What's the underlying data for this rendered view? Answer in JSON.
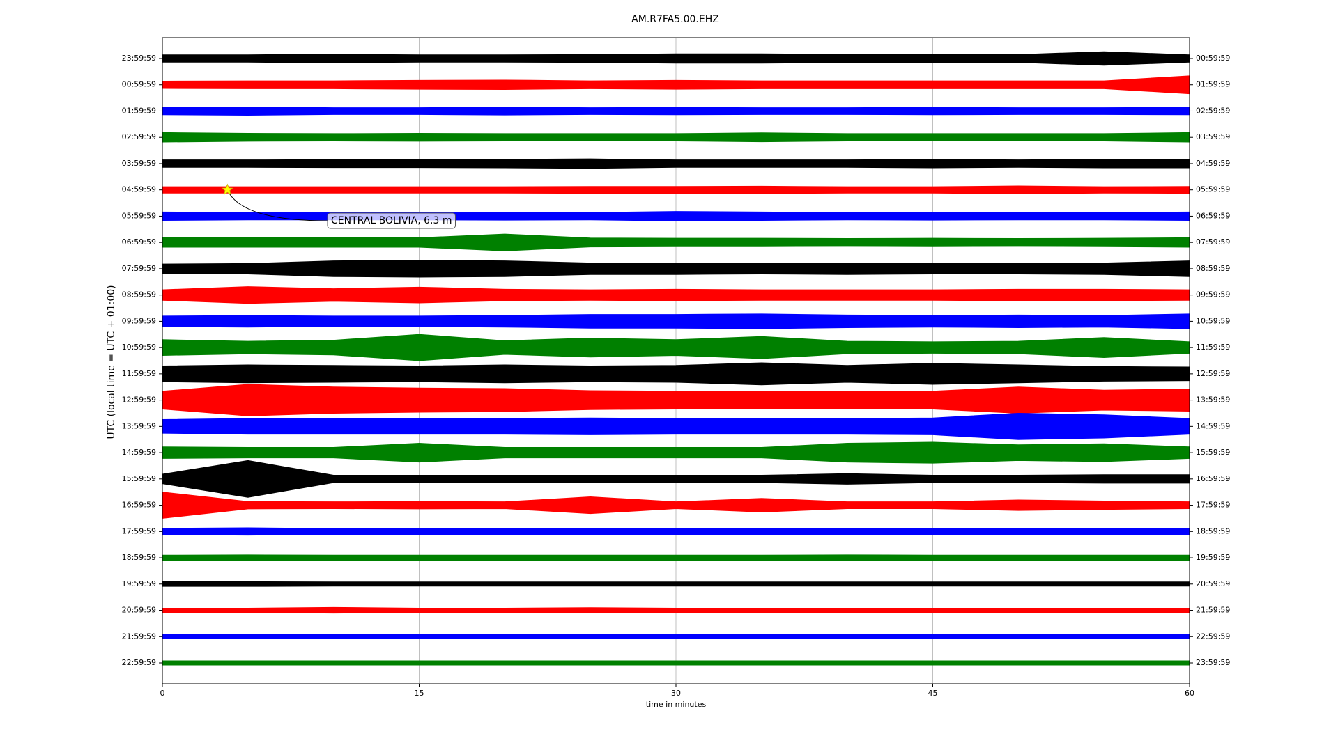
{
  "chart_data": {
    "type": "helicorder",
    "title": "AM.R7FA5.00.EHZ",
    "xlabel": "time in minutes",
    "ylabel": "UTC (local time = UTC + 01:00)",
    "xlim": [
      0,
      60
    ],
    "xticks": [
      0,
      15,
      30,
      45,
      60
    ],
    "grid": true,
    "x": [
      0,
      5,
      10,
      15,
      20,
      25,
      30,
      35,
      40,
      45,
      50,
      55,
      60
    ],
    "series": [
      {
        "name": "23:59:59",
        "right_label": "00:59:59",
        "color": "#000000",
        "values": [
          0.14,
          0.14,
          0.16,
          0.14,
          0.14,
          0.15,
          0.18,
          0.18,
          0.15,
          0.17,
          0.15,
          0.26,
          0.14
        ]
      },
      {
        "name": "00:59:59",
        "right_label": "01:59:59",
        "color": "#ff0000",
        "values": [
          0.14,
          0.15,
          0.15,
          0.17,
          0.18,
          0.15,
          0.17,
          0.15,
          0.15,
          0.15,
          0.15,
          0.15,
          0.34
        ]
      },
      {
        "name": "01:59:59",
        "right_label": "02:59:59",
        "color": "#0000ff",
        "values": [
          0.14,
          0.16,
          0.13,
          0.13,
          0.15,
          0.13,
          0.14,
          0.13,
          0.13,
          0.14,
          0.13,
          0.13,
          0.14
        ]
      },
      {
        "name": "02:59:59",
        "right_label": "03:59:59",
        "color": "#008000",
        "values": [
          0.18,
          0.15,
          0.14,
          0.15,
          0.14,
          0.14,
          0.14,
          0.17,
          0.14,
          0.14,
          0.14,
          0.14,
          0.18
        ]
      },
      {
        "name": "03:59:59",
        "right_label": "04:59:59",
        "color": "#000000",
        "values": [
          0.14,
          0.14,
          0.15,
          0.15,
          0.16,
          0.18,
          0.14,
          0.14,
          0.14,
          0.16,
          0.14,
          0.16,
          0.16
        ]
      },
      {
        "name": "04:59:59",
        "right_label": "05:59:59",
        "color": "#ff0000",
        "values": [
          0.12,
          0.12,
          0.12,
          0.12,
          0.12,
          0.13,
          0.13,
          0.14,
          0.12,
          0.12,
          0.15,
          0.12,
          0.13
        ]
      },
      {
        "name": "05:59:59",
        "right_label": "06:59:59",
        "color": "#0000ff",
        "values": [
          0.16,
          0.14,
          0.14,
          0.14,
          0.15,
          0.14,
          0.18,
          0.16,
          0.14,
          0.15,
          0.14,
          0.14,
          0.16
        ]
      },
      {
        "name": "06:59:59",
        "right_label": "07:59:59",
        "color": "#008000",
        "values": [
          0.18,
          0.18,
          0.18,
          0.18,
          0.32,
          0.17,
          0.16,
          0.16,
          0.15,
          0.16,
          0.15,
          0.16,
          0.18
        ]
      },
      {
        "name": "07:59:59",
        "right_label": "08:59:59",
        "color": "#000000",
        "values": [
          0.18,
          0.2,
          0.3,
          0.32,
          0.3,
          0.22,
          0.22,
          0.2,
          0.22,
          0.2,
          0.2,
          0.22,
          0.3
        ]
      },
      {
        "name": "08:59:59",
        "right_label": "09:59:59",
        "color": "#ff0000",
        "values": [
          0.2,
          0.32,
          0.24,
          0.3,
          0.22,
          0.2,
          0.22,
          0.2,
          0.2,
          0.2,
          0.22,
          0.22,
          0.2
        ]
      },
      {
        "name": "09:59:59",
        "right_label": "10:59:59",
        "color": "#0000ff",
        "values": [
          0.2,
          0.22,
          0.2,
          0.2,
          0.22,
          0.26,
          0.26,
          0.28,
          0.24,
          0.22,
          0.24,
          0.22,
          0.28
        ]
      },
      {
        "name": "10:59:59",
        "right_label": "11:59:59",
        "color": "#008000",
        "values": [
          0.3,
          0.24,
          0.28,
          0.5,
          0.26,
          0.36,
          0.3,
          0.42,
          0.24,
          0.22,
          0.24,
          0.38,
          0.22
        ]
      },
      {
        "name": "11:59:59",
        "right_label": "12:59:59",
        "color": "#000000",
        "values": [
          0.3,
          0.34,
          0.32,
          0.3,
          0.34,
          0.3,
          0.32,
          0.42,
          0.32,
          0.4,
          0.34,
          0.28,
          0.26
        ]
      },
      {
        "name": "12:59:59",
        "right_label": "13:59:59",
        "color": "#ff0000",
        "values": [
          0.34,
          0.6,
          0.5,
          0.46,
          0.44,
          0.36,
          0.34,
          0.34,
          0.34,
          0.34,
          0.5,
          0.38,
          0.42
        ]
      },
      {
        "name": "13:59:59",
        "right_label": "14:59:59",
        "color": "#0000ff",
        "values": [
          0.26,
          0.3,
          0.3,
          0.3,
          0.3,
          0.32,
          0.3,
          0.3,
          0.3,
          0.32,
          0.5,
          0.44,
          0.3
        ]
      },
      {
        "name": "14:59:59",
        "right_label": "15:59:59",
        "color": "#008000",
        "values": [
          0.22,
          0.2,
          0.2,
          0.36,
          0.2,
          0.2,
          0.2,
          0.2,
          0.36,
          0.4,
          0.3,
          0.34,
          0.22
        ]
      },
      {
        "name": "15:59:59",
        "right_label": "16:59:59",
        "color": "#000000",
        "values": [
          0.18,
          0.7,
          0.14,
          0.14,
          0.14,
          0.14,
          0.14,
          0.14,
          0.2,
          0.14,
          0.14,
          0.16,
          0.16
        ]
      },
      {
        "name": "16:59:59",
        "right_label": "17:59:59",
        "color": "#ff0000",
        "values": [
          0.5,
          0.14,
          0.13,
          0.14,
          0.13,
          0.32,
          0.13,
          0.26,
          0.13,
          0.13,
          0.2,
          0.16,
          0.13
        ]
      },
      {
        "name": "17:59:59",
        "right_label": "18:59:59",
        "color": "#0000ff",
        "values": [
          0.12,
          0.14,
          0.11,
          0.11,
          0.11,
          0.11,
          0.11,
          0.11,
          0.11,
          0.11,
          0.11,
          0.11,
          0.11
        ]
      },
      {
        "name": "18:59:59",
        "right_label": "19:59:59",
        "color": "#008000",
        "values": [
          0.1,
          0.11,
          0.1,
          0.1,
          0.1,
          0.1,
          0.1,
          0.1,
          0.11,
          0.1,
          0.1,
          0.1,
          0.1
        ]
      },
      {
        "name": "19:59:59",
        "right_label": "20:59:59",
        "color": "#000000",
        "values": [
          0.09,
          0.09,
          0.08,
          0.08,
          0.08,
          0.08,
          0.08,
          0.08,
          0.08,
          0.08,
          0.08,
          0.08,
          0.08
        ]
      },
      {
        "name": "20:59:59",
        "right_label": "21:59:59",
        "color": "#ff0000",
        "values": [
          0.08,
          0.08,
          0.11,
          0.08,
          0.08,
          0.1,
          0.08,
          0.08,
          0.08,
          0.08,
          0.08,
          0.08,
          0.08
        ]
      },
      {
        "name": "21:59:59",
        "right_label": "22:59:59",
        "color": "#0000ff",
        "values": [
          0.08,
          0.08,
          0.08,
          0.08,
          0.08,
          0.08,
          0.08,
          0.08,
          0.08,
          0.08,
          0.08,
          0.08,
          0.08
        ]
      },
      {
        "name": "22:59:59",
        "right_label": "23:59:59",
        "color": "#008000",
        "values": [
          0.08,
          0.08,
          0.08,
          0.08,
          0.08,
          0.08,
          0.08,
          0.08,
          0.08,
          0.08,
          0.08,
          0.08,
          0.08
        ]
      }
    ],
    "event": {
      "text": "CENTRAL BOLIVIA, 6.3 m",
      "series": 5,
      "x": 3.8
    }
  }
}
